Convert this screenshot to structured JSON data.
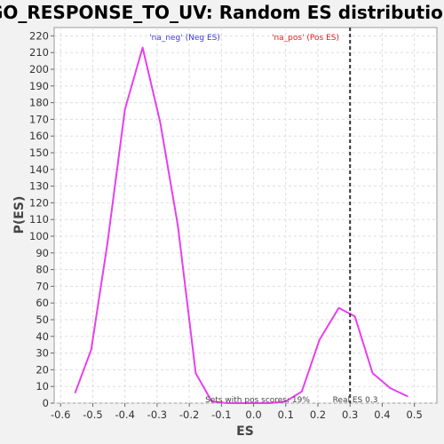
{
  "chart_data": {
    "type": "line",
    "title": "GO_RESPONSE_TO_UV: Random ES distribution",
    "xlabel": "ES",
    "ylabel": "P(ES)",
    "xlim": [
      -0.62,
      0.57
    ],
    "ylim": [
      0,
      225
    ],
    "x_ticks": [
      -0.6,
      -0.5,
      -0.4,
      -0.3,
      -0.2,
      -0.1,
      0.0,
      0.1,
      0.2,
      0.3,
      0.4,
      0.5
    ],
    "x_tick_labels": [
      "-0.6",
      "-0.5",
      "-0.4",
      "-0.3",
      "-0.2",
      "-0.1",
      "0.0",
      "0.1",
      "0.2",
      "0.3",
      "0.4",
      "0.5"
    ],
    "y_ticks": [
      0,
      10,
      20,
      30,
      40,
      50,
      60,
      70,
      80,
      90,
      100,
      110,
      120,
      130,
      140,
      150,
      160,
      170,
      180,
      190,
      200,
      210,
      220
    ],
    "grid": true,
    "series": [
      {
        "name": "'na_neg' (Neg ES)",
        "color": "#e83ef0",
        "label_color": "#3a3adf",
        "x": [
          -0.555,
          -0.505,
          -0.455,
          -0.4,
          -0.345,
          -0.29,
          -0.235,
          -0.18,
          -0.13,
          -0.08,
          -0.03,
          0.0
        ],
        "y": [
          6,
          32,
          95,
          176,
          213,
          168,
          106,
          18,
          1,
          0,
          0,
          0
        ]
      },
      {
        "name": "'na_pos' (Pos ES)",
        "color": "#e83ef0",
        "label_color": "#e02020",
        "x": [
          0.0,
          0.05,
          0.1,
          0.15,
          0.205,
          0.265,
          0.315,
          0.37,
          0.425,
          0.48
        ],
        "y": [
          0,
          0,
          1,
          7,
          38,
          57,
          52,
          18,
          9,
          4
        ]
      }
    ],
    "real_es": {
      "value": 0.3,
      "label": "Real ES 0.3",
      "color": "#333333"
    },
    "annotation": "Sets with pos scores: 19%"
  }
}
